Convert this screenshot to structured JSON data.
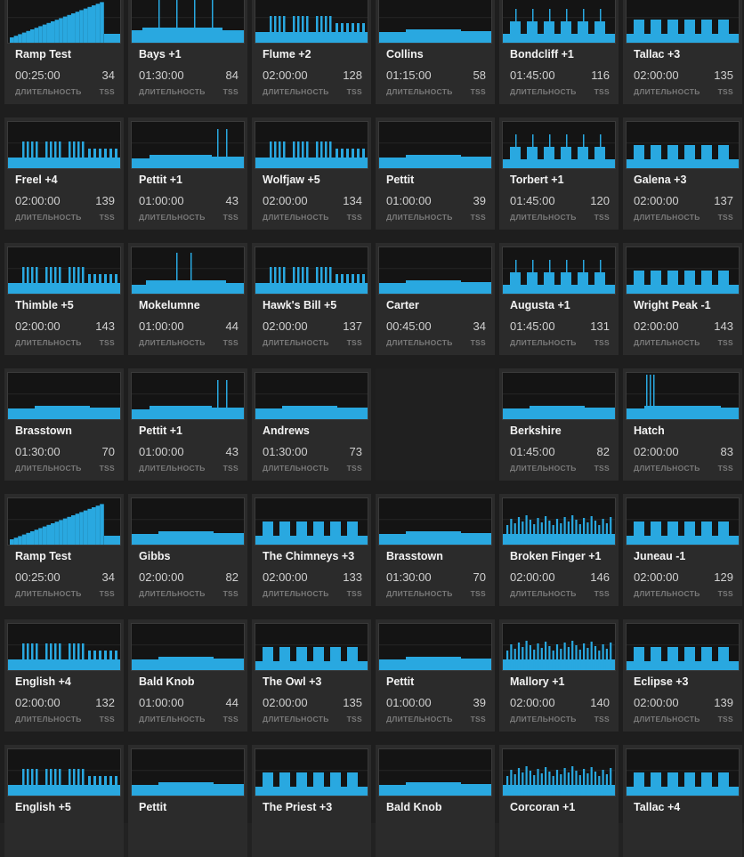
{
  "labels": {
    "duration": "ДЛИТЕЛЬНОСТЬ",
    "tss": "TSS"
  },
  "colors": {
    "bar": "#29a8e0",
    "chart_bg": "#141414",
    "tile_bg": "#2b2b2b"
  },
  "workouts": [
    [
      {
        "name": "Ramp Test",
        "duration": "00:25:00",
        "tss": "34",
        "profile": "ramp"
      },
      {
        "name": "Bays +1",
        "duration": "01:30:00",
        "tss": "84",
        "profile": "spikes"
      },
      {
        "name": "Flume +2",
        "duration": "02:00:00",
        "tss": "128",
        "profile": "comb"
      },
      {
        "name": "Collins",
        "duration": "01:15:00",
        "tss": "58",
        "profile": "flat"
      },
      {
        "name": "Bondcliff +1",
        "duration": "01:45:00",
        "tss": "116",
        "profile": "blocks-spikes"
      },
      {
        "name": "Tallac +3",
        "duration": "02:00:00",
        "tss": "135",
        "profile": "blocks"
      }
    ],
    [
      {
        "name": "Freel +4",
        "duration": "02:00:00",
        "tss": "139",
        "profile": "comb"
      },
      {
        "name": "Pettit +1",
        "duration": "01:00:00",
        "tss": "43",
        "profile": "spikes-end"
      },
      {
        "name": "Wolfjaw +5",
        "duration": "02:00:00",
        "tss": "134",
        "profile": "comb"
      },
      {
        "name": "Pettit",
        "duration": "01:00:00",
        "tss": "39",
        "profile": "flat"
      },
      {
        "name": "Torbert +1",
        "duration": "01:45:00",
        "tss": "120",
        "profile": "blocks-spikes"
      },
      {
        "name": "Galena +3",
        "duration": "02:00:00",
        "tss": "137",
        "profile": "blocks"
      }
    ],
    [
      {
        "name": "Thimble +5",
        "duration": "02:00:00",
        "tss": "143",
        "profile": "comb"
      },
      {
        "name": "Mokelumne",
        "duration": "01:00:00",
        "tss": "44",
        "profile": "spikes-mid"
      },
      {
        "name": "Hawk's Bill +5",
        "duration": "02:00:00",
        "tss": "137",
        "profile": "comb"
      },
      {
        "name": "Carter",
        "duration": "00:45:00",
        "tss": "34",
        "profile": "flat"
      },
      {
        "name": "Augusta +1",
        "duration": "01:45:00",
        "tss": "131",
        "profile": "blocks-spikes"
      },
      {
        "name": "Wright Peak -1",
        "duration": "02:00:00",
        "tss": "143",
        "profile": "blocks"
      }
    ],
    [
      {
        "name": "Brasstown",
        "duration": "01:30:00",
        "tss": "70",
        "profile": "flat"
      },
      {
        "name": "Pettit +1",
        "duration": "01:00:00",
        "tss": "43",
        "profile": "spikes-end"
      },
      {
        "name": "Andrews",
        "duration": "01:30:00",
        "tss": "73",
        "profile": "flat"
      },
      null,
      {
        "name": "Berkshire",
        "duration": "01:45:00",
        "tss": "82",
        "profile": "flat"
      },
      {
        "name": "Hatch",
        "duration": "02:00:00",
        "tss": "83",
        "profile": "spikes-start"
      }
    ],
    [
      {
        "name": "Ramp Test",
        "duration": "00:25:00",
        "tss": "34",
        "profile": "ramp"
      },
      {
        "name": "Gibbs",
        "duration": "02:00:00",
        "tss": "82",
        "profile": "flat"
      },
      {
        "name": "The Chimneys +3",
        "duration": "02:00:00",
        "tss": "133",
        "profile": "blocks"
      },
      {
        "name": "Brasstown",
        "duration": "01:30:00",
        "tss": "70",
        "profile": "flat"
      },
      {
        "name": "Broken Finger +1",
        "duration": "02:00:00",
        "tss": "146",
        "profile": "dense"
      },
      {
        "name": "Juneau -1",
        "duration": "02:00:00",
        "tss": "129",
        "profile": "blocks"
      }
    ],
    [
      {
        "name": "English +4",
        "duration": "02:00:00",
        "tss": "132",
        "profile": "comb"
      },
      {
        "name": "Bald Knob",
        "duration": "01:00:00",
        "tss": "44",
        "profile": "flat"
      },
      {
        "name": "The Owl +3",
        "duration": "02:00:00",
        "tss": "135",
        "profile": "blocks"
      },
      {
        "name": "Pettit",
        "duration": "01:00:00",
        "tss": "39",
        "profile": "flat"
      },
      {
        "name": "Mallory +1",
        "duration": "02:00:00",
        "tss": "140",
        "profile": "dense"
      },
      {
        "name": "Eclipse +3",
        "duration": "02:00:00",
        "tss": "139",
        "profile": "blocks"
      }
    ],
    [
      {
        "name": "English +5",
        "duration": "",
        "tss": "",
        "profile": "comb"
      },
      {
        "name": "Pettit",
        "duration": "",
        "tss": "",
        "profile": "flat"
      },
      {
        "name": "The Priest +3",
        "duration": "",
        "tss": "",
        "profile": "blocks"
      },
      {
        "name": "Bald Knob",
        "duration": "",
        "tss": "",
        "profile": "flat"
      },
      {
        "name": "Corcoran +1",
        "duration": "",
        "tss": "",
        "profile": "dense"
      },
      {
        "name": "Tallac +4",
        "duration": "",
        "tss": "",
        "profile": "blocks"
      }
    ]
  ]
}
